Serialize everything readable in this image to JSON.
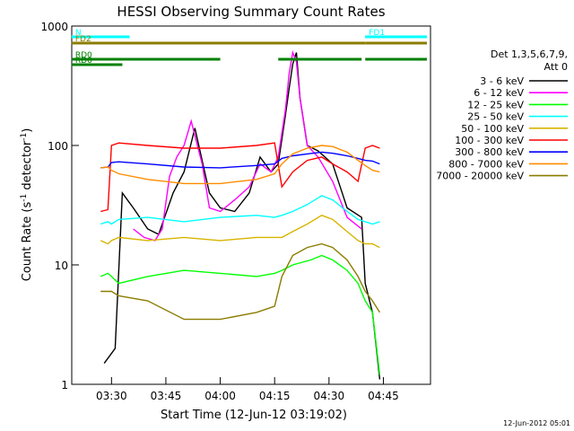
{
  "chart_data": {
    "type": "line",
    "title": "HESSI Observing Summary Count Rates",
    "xlabel": "Start Time (12-Jun-12 03:19:02)",
    "ylabel_main": "Count Rate (s",
    "ylabel_sup1": "-1",
    "ylabel_mid": " detector",
    "ylabel_sup2": "-1",
    "ylabel_end": ")",
    "ylabel": "Count Rate (s^-1 detector^-1)",
    "y_scale": "log",
    "xlim": [
      "03:19:02",
      "04:58:00"
    ],
    "ylim": [
      1,
      1000
    ],
    "x_ticks": [
      "03:30",
      "03:45",
      "04:00",
      "04:15",
      "04:30",
      "04:45"
    ],
    "y_ticks": [
      "1",
      "10",
      "100",
      "1000"
    ],
    "legend_header_line1": "Det 1,3,5,6,7,9,",
    "legend_header_line2": "Att 0",
    "legend_position": "right",
    "footer_date": "12-Jun-2012 05:01",
    "series": [
      {
        "name": "3 - 6 keV",
        "color": "#000000",
        "x": [
          "03:28",
          "03:31",
          "03:33",
          "03:36",
          "03:40",
          "03:43",
          "03:47",
          "03:50",
          "03:53",
          "03:57",
          "04:00",
          "04:04",
          "04:08",
          "04:11",
          "04:14",
          "04:16",
          "04:18",
          "04:19",
          "04:20",
          "04:21",
          "04:22",
          "04:24",
          "04:27",
          "04:31",
          "04:35",
          "04:39",
          "04:40",
          "04:42",
          "04:44"
        ],
        "values": [
          1.5,
          2,
          40,
          30,
          20,
          18,
          40,
          60,
          140,
          40,
          30,
          28,
          40,
          80,
          60,
          70,
          180,
          300,
          480,
          600,
          250,
          100,
          90,
          70,
          30,
          25,
          7,
          4,
          1.1
        ]
      },
      {
        "name": "6 - 12 keV",
        "color": "#ff00ff",
        "x": [
          "03:36",
          "03:39",
          "03:42",
          "03:44",
          "03:46",
          "03:48",
          "03:50",
          "03:52",
          "03:55",
          "03:57",
          "04:00",
          "04:04",
          "04:08",
          "04:11",
          "04:14",
          "04:16",
          "04:18",
          "04:19",
          "04:20",
          "04:21",
          "04:22",
          "04:24",
          "04:27",
          "04:31",
          "04:35",
          "04:39"
        ],
        "values": [
          20,
          17,
          16,
          20,
          55,
          80,
          100,
          160,
          70,
          30,
          28,
          35,
          45,
          70,
          60,
          80,
          200,
          400,
          600,
          500,
          250,
          100,
          80,
          50,
          25,
          20
        ]
      },
      {
        "name": "12 - 25 keV",
        "color": "#00ff00",
        "x": [
          "03:27",
          "03:29",
          "03:30",
          "03:32",
          "03:40",
          "03:50",
          "04:00",
          "04:10",
          "04:15",
          "04:17",
          "04:20",
          "04:25",
          "04:28",
          "04:31",
          "04:35",
          "04:38",
          "04:40",
          "04:42",
          "04:44"
        ],
        "values": [
          8,
          8.5,
          8,
          7,
          8,
          9,
          8.5,
          8,
          8.5,
          9,
          10,
          11,
          12,
          11,
          9,
          7,
          5,
          4,
          1.2
        ]
      },
      {
        "name": "25 - 50 keV",
        "color": "#00ffff",
        "x": [
          "03:27",
          "03:29",
          "03:30",
          "03:32",
          "03:40",
          "03:50",
          "04:00",
          "04:10",
          "04:15",
          "04:17",
          "04:20",
          "04:24",
          "04:28",
          "04:31",
          "04:35",
          "04:38",
          "04:40",
          "04:42",
          "04:44"
        ],
        "values": [
          22,
          23,
          22,
          24,
          25,
          23,
          25,
          26,
          25,
          26,
          28,
          32,
          38,
          35,
          28,
          24,
          23,
          22,
          23
        ]
      },
      {
        "name": "50 - 100 keV",
        "color": "#d8b400",
        "x": [
          "03:27",
          "03:29",
          "03:30",
          "03:32",
          "03:40",
          "03:50",
          "04:00",
          "04:10",
          "04:15",
          "04:17",
          "04:20",
          "04:24",
          "04:28",
          "04:31",
          "04:35",
          "04:38",
          "04:40",
          "04:42",
          "04:44"
        ],
        "values": [
          16,
          15,
          16,
          17,
          16,
          17,
          16,
          17,
          17,
          17,
          19,
          22,
          26,
          24,
          19,
          16,
          15,
          15,
          14
        ]
      },
      {
        "name": "100 - 300 keV",
        "color": "#ff0000",
        "x": [
          "03:27",
          "03:29",
          "03:30",
          "03:32",
          "03:40",
          "03:50",
          "04:00",
          "04:10",
          "04:15",
          "04:17",
          "04:20",
          "04:24",
          "04:28",
          "04:31",
          "04:35",
          "04:38",
          "04:40",
          "04:42",
          "04:44"
        ],
        "values": [
          28,
          29,
          100,
          105,
          100,
          95,
          95,
          100,
          105,
          45,
          60,
          75,
          80,
          70,
          60,
          50,
          95,
          100,
          95
        ]
      },
      {
        "name": "300 - 800 keV",
        "color": "#0000ff",
        "x": [
          "03:27",
          "03:29",
          "03:30",
          "03:32",
          "03:40",
          "03:50",
          "04:00",
          "04:10",
          "04:15",
          "04:17",
          "04:20",
          "04:24",
          "04:28",
          "04:31",
          "04:35",
          "04:38",
          "04:40",
          "04:42",
          "04:44"
        ],
        "values": [
          65,
          66,
          72,
          73,
          70,
          66,
          65,
          68,
          70,
          78,
          82,
          85,
          88,
          86,
          82,
          78,
          75,
          74,
          70
        ]
      },
      {
        "name": "800 - 7000 keV",
        "color": "#ff8c00",
        "x": [
          "03:27",
          "03:29",
          "03:30",
          "03:32",
          "03:40",
          "03:50",
          "04:00",
          "04:10",
          "04:15",
          "04:17",
          "04:20",
          "04:24",
          "04:28",
          "04:31",
          "04:35",
          "04:38",
          "04:40",
          "04:42",
          "04:44"
        ],
        "values": [
          65,
          66,
          62,
          58,
          52,
          48,
          48,
          52,
          58,
          70,
          85,
          95,
          100,
          98,
          88,
          75,
          68,
          62,
          60
        ]
      },
      {
        "name": "7000 - 20000 keV",
        "color": "#8b7d00",
        "x": [
          "03:27",
          "03:29",
          "03:30",
          "03:32",
          "03:40",
          "03:50",
          "04:00",
          "04:10",
          "04:15",
          "04:17",
          "04:20",
          "04:24",
          "04:28",
          "04:31",
          "04:35",
          "04:38",
          "04:40",
          "04:42",
          "04:44"
        ],
        "values": [
          6,
          6,
          6,
          5.5,
          5,
          3.5,
          3.5,
          4,
          4.5,
          8,
          12,
          14,
          15,
          14,
          11,
          8,
          6,
          5,
          4
        ]
      }
    ],
    "flags": [
      {
        "label": "N",
        "color": "#00ffff",
        "segments": [
          [
            "03:19",
            "03:35"
          ],
          [
            "04:40",
            "04:57"
          ]
        ]
      },
      {
        "label": "FD1",
        "color": "#00ffff",
        "segments": [
          [
            "04:40",
            "04:57"
          ]
        ]
      },
      {
        "label": "FD2",
        "color": "#8b7d00",
        "segments": [
          [
            "03:19",
            "04:40"
          ],
          [
            "04:40",
            "04:57"
          ]
        ]
      },
      {
        "label": "RD0",
        "color": "#008000",
        "segments": [
          [
            "03:19",
            "04:00"
          ],
          [
            "04:16",
            "04:39"
          ],
          [
            "04:40",
            "04:57"
          ]
        ]
      },
      {
        "label": "RD6",
        "color": "#008000",
        "segments": [
          [
            "03:19",
            "03:33"
          ]
        ]
      }
    ]
  }
}
